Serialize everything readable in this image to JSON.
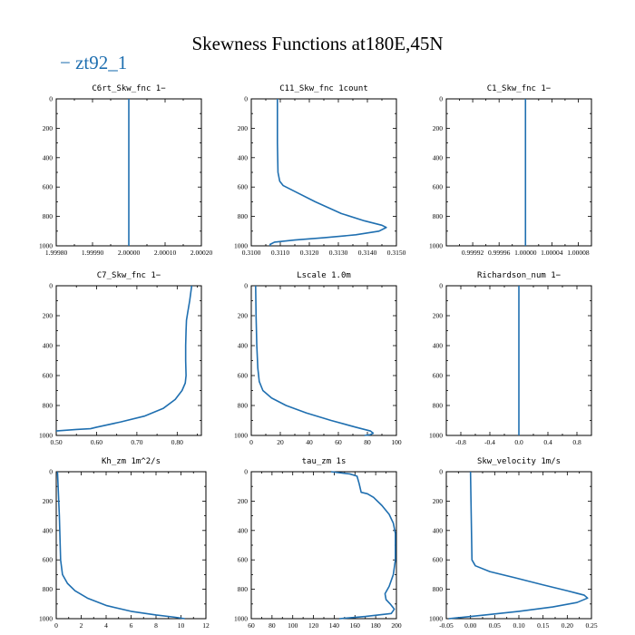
{
  "title": "Skewness Functions at180E,45N",
  "legend": {
    "marker": "−",
    "label": "zt92_1",
    "color": "#1f6fb0"
  },
  "chart_data": [
    {
      "type": "line",
      "title": "C6rt_Skw_fnc   1−",
      "xlim": [
        1.9998,
        2.0002
      ],
      "ylim": [
        1000,
        0
      ],
      "xticks": [
        "1.99980",
        "1.99990",
        "2.00000",
        "2.00010",
        "2.00020"
      ],
      "xtick_values": [
        1.9998,
        1.9999,
        2.0,
        2.0001,
        2.0002
      ],
      "yticks": [
        "0",
        "200",
        "400",
        "600",
        "800",
        "1000"
      ],
      "series": [
        {
          "points": [
            [
              2.0,
              0
            ],
            [
              2.0,
              1000
            ]
          ]
        }
      ]
    },
    {
      "type": "line",
      "title": "C11_Skw_fnc   1count",
      "xlim": [
        0.31,
        0.315
      ],
      "ylim": [
        1000,
        0
      ],
      "xticks": [
        "0.3100",
        "0.3110",
        "0.3120",
        "0.3130",
        "0.3140",
        "0.3150"
      ],
      "xtick_values": [
        0.31,
        0.311,
        0.312,
        0.313,
        0.314,
        0.315
      ],
      "yticks": [
        "0",
        "200",
        "400",
        "600",
        "800",
        "1000"
      ],
      "series": [
        {
          "points": [
            [
              0.3109,
              0
            ],
            [
              0.3109,
              300
            ],
            [
              0.31092,
              500
            ],
            [
              0.31098,
              560
            ],
            [
              0.3111,
              590
            ],
            [
              0.3115,
              630
            ],
            [
              0.3122,
              700
            ],
            [
              0.3131,
              780
            ],
            [
              0.3139,
              830
            ],
            [
              0.3145,
              860
            ],
            [
              0.31465,
              875
            ],
            [
              0.3144,
              900
            ],
            [
              0.3136,
              925
            ],
            [
              0.3125,
              945
            ],
            [
              0.3115,
              960
            ],
            [
              0.3108,
              975
            ],
            [
              0.31065,
              990
            ],
            [
              0.31065,
              1000
            ]
          ]
        }
      ]
    },
    {
      "type": "line",
      "title": "C1_Skw_fnc   1−",
      "xlim": [
        0.99988,
        1.0001
      ],
      "ylim": [
        1000,
        0
      ],
      "xticks": [
        "0.99992",
        "0.99996",
        "1.00000",
        "1.00004",
        "1.00008"
      ],
      "xtick_values": [
        0.99992,
        0.99996,
        1.0,
        1.00004,
        1.00008
      ],
      "yticks": [
        "0",
        "200",
        "400",
        "600",
        "800",
        "1000"
      ],
      "series": [
        {
          "points": [
            [
              1.0,
              0
            ],
            [
              1.0,
              1000
            ]
          ]
        }
      ]
    },
    {
      "type": "line",
      "title": "C7_Skw_fnc   1−",
      "xlim": [
        0.5,
        0.86
      ],
      "ylim": [
        1000,
        0
      ],
      "xticks": [
        "0.50",
        "0.60",
        "0.70",
        "0.80"
      ],
      "xtick_values": [
        0.5,
        0.6,
        0.7,
        0.8
      ],
      "yticks": [
        "0",
        "200",
        "400",
        "600",
        "800",
        "1000"
      ],
      "series": [
        {
          "points": [
            [
              0.836,
              0
            ],
            [
              0.831,
              100
            ],
            [
              0.826,
              180
            ],
            [
              0.823,
              230
            ],
            [
              0.822,
              300
            ],
            [
              0.821,
              400
            ],
            [
              0.821,
              500
            ],
            [
              0.822,
              600
            ],
            [
              0.82,
              650
            ],
            [
              0.812,
              700
            ],
            [
              0.795,
              760
            ],
            [
              0.765,
              820
            ],
            [
              0.72,
              870
            ],
            [
              0.66,
              910
            ],
            [
              0.6,
              945
            ],
            [
              0.585,
              955
            ],
            [
              0.55,
              960
            ],
            [
              0.5,
              970
            ]
          ]
        }
      ]
    },
    {
      "type": "line",
      "title": "Lscale   1.0m",
      "xlim": [
        0,
        100
      ],
      "ylim": [
        1000,
        0
      ],
      "xticks": [
        "0",
        "20",
        "40",
        "60",
        "80",
        "100"
      ],
      "xtick_values": [
        0,
        20,
        40,
        60,
        80,
        100
      ],
      "yticks": [
        "0",
        "200",
        "400",
        "600",
        "800",
        "1000"
      ],
      "series": [
        {
          "points": [
            [
              3,
              0
            ],
            [
              3.3,
              200
            ],
            [
              3.8,
              400
            ],
            [
              4.5,
              550
            ],
            [
              5.5,
              640
            ],
            [
              8,
              700
            ],
            [
              14,
              750
            ],
            [
              24,
              800
            ],
            [
              38,
              850
            ],
            [
              55,
              900
            ],
            [
              72,
              945
            ],
            [
              82,
              970
            ],
            [
              84,
              985
            ],
            [
              82,
              995
            ],
            [
              78,
              1000
            ]
          ]
        }
      ]
    },
    {
      "type": "line",
      "title": "Richardson_num   1−",
      "xlim": [
        -1,
        1
      ],
      "ylim": [
        1000,
        0
      ],
      "xticks": [
        "-0.8",
        "-0.4",
        "0.0",
        "0.4",
        "0.8"
      ],
      "xtick_values": [
        -0.8,
        -0.4,
        0.0,
        0.4,
        0.8
      ],
      "yticks": [
        "0",
        "200",
        "400",
        "600",
        "800",
        "1000"
      ],
      "series": [
        {
          "points": [
            [
              0,
              0
            ],
            [
              0,
              1000
            ]
          ]
        }
      ]
    },
    {
      "type": "line",
      "title": "Kh_zm   1m^2/s",
      "xlim": [
        0,
        12
      ],
      "ylim": [
        1000,
        0
      ],
      "xticks": [
        "0",
        "2",
        "4",
        "6",
        "8",
        "10",
        "12"
      ],
      "xtick_values": [
        0,
        2,
        4,
        6,
        8,
        10,
        12
      ],
      "yticks": [
        "0",
        "200",
        "400",
        "600",
        "800",
        "1000"
      ],
      "series": [
        {
          "points": [
            [
              0.1,
              0
            ],
            [
              0.25,
              300
            ],
            [
              0.35,
              600
            ],
            [
              0.5,
              700
            ],
            [
              0.9,
              760
            ],
            [
              1.5,
              810
            ],
            [
              2.5,
              860
            ],
            [
              4,
              910
            ],
            [
              6,
              950
            ],
            [
              8,
              975
            ],
            [
              9.5,
              990
            ],
            [
              10.3,
              1000
            ]
          ]
        }
      ]
    },
    {
      "type": "line",
      "title": "tau_zm   1s",
      "xlim": [
        60,
        200
      ],
      "ylim": [
        1000,
        0
      ],
      "xticks": [
        "60",
        "80",
        "100",
        "120",
        "140",
        "160",
        "180",
        "200"
      ],
      "xtick_values": [
        60,
        80,
        100,
        120,
        140,
        160,
        180,
        200
      ],
      "yticks": [
        "0",
        "200",
        "400",
        "600",
        "800",
        "1000"
      ],
      "series": [
        {
          "points": [
            [
              137,
              0
            ],
            [
              155,
              15
            ],
            [
              162,
              30
            ],
            [
              164,
              80
            ],
            [
              166,
              140
            ],
            [
              172,
              150
            ],
            [
              178,
              175
            ],
            [
              186,
              230
            ],
            [
              193,
              290
            ],
            [
              197,
              350
            ],
            [
              199,
              420
            ],
            [
              199,
              600
            ],
            [
              197,
              700
            ],
            [
              193,
              780
            ],
            [
              189,
              830
            ],
            [
              190,
              870
            ],
            [
              194,
              900
            ],
            [
              198,
              935
            ],
            [
              195,
              965
            ],
            [
              170,
              985
            ],
            [
              145,
              1000
            ]
          ]
        }
      ]
    },
    {
      "type": "line",
      "title": "Skw_velocity   1m/s",
      "xlim": [
        -0.05,
        0.25
      ],
      "ylim": [
        1000,
        0
      ],
      "xticks": [
        "-0.05",
        "0.00",
        "0.05",
        "0.10",
        "0.15",
        "0.20",
        "0.25"
      ],
      "xtick_values": [
        -0.05,
        0.0,
        0.05,
        0.1,
        0.15,
        0.2,
        0.25
      ],
      "yticks": [
        "0",
        "200",
        "400",
        "600",
        "800",
        "1000"
      ],
      "series": [
        {
          "points": [
            [
              0.0,
              0
            ],
            [
              0.001,
              200
            ],
            [
              0.002,
              400
            ],
            [
              0.003,
              600
            ],
            [
              0.01,
              640
            ],
            [
              0.04,
              680
            ],
            [
              0.09,
              720
            ],
            [
              0.15,
              770
            ],
            [
              0.2,
              810
            ],
            [
              0.235,
              840
            ],
            [
              0.242,
              860
            ],
            [
              0.22,
              890
            ],
            [
              0.17,
              920
            ],
            [
              0.1,
              950
            ],
            [
              0.03,
              975
            ],
            [
              -0.03,
              995
            ],
            [
              -0.045,
              1000
            ]
          ]
        }
      ]
    }
  ]
}
